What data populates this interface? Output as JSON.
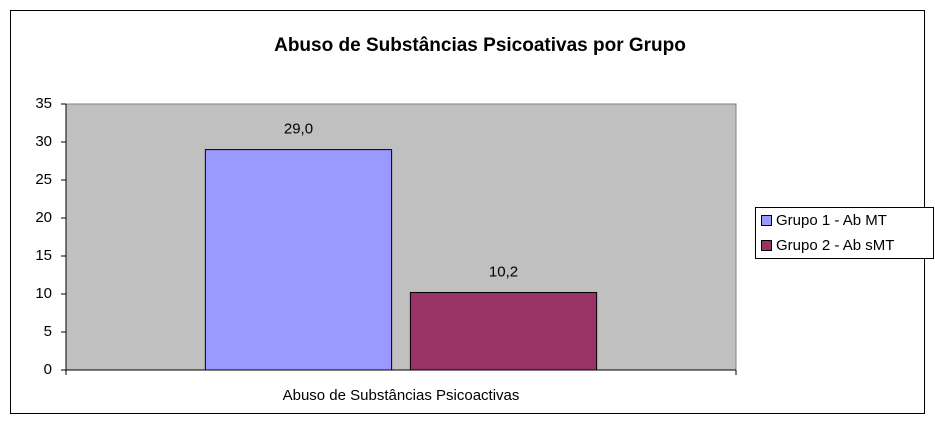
{
  "chart_data": {
    "type": "bar",
    "title": "Abuso de Substâncias Psicoativas por Grupo",
    "categories": [
      "Abuso de Substâncias Psicoactivas"
    ],
    "series": [
      {
        "name": "Grupo 1 - Ab MT",
        "color": "#9999ff",
        "values": [
          29.0
        ],
        "value_labels": [
          "29,0"
        ]
      },
      {
        "name": "Grupo 2 - Ab sMT",
        "color": "#993366",
        "values": [
          10.2
        ],
        "value_labels": [
          "10,2"
        ]
      }
    ],
    "ylim": [
      0,
      35
    ],
    "yticks": [
      0,
      5,
      10,
      15,
      20,
      25,
      30,
      35
    ],
    "grid": false,
    "legend": "right"
  }
}
